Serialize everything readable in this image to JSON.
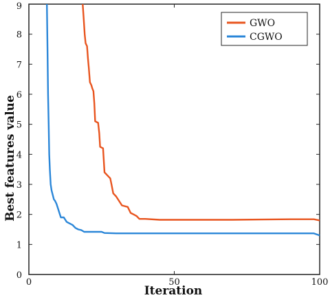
{
  "chart_data": {
    "type": "line",
    "xlabel": "Iteration",
    "ylabel": "Best features value",
    "xlim": [
      0,
      100
    ],
    "ylim": [
      0,
      9
    ],
    "xticks": [
      "0",
      "50",
      "100"
    ],
    "yticks": [
      "0",
      "1",
      "2",
      "3",
      "4",
      "5",
      "6",
      "7",
      "8",
      "9"
    ],
    "grid": false,
    "legend_position": "top-right",
    "series": [
      {
        "name": "GWO",
        "color": "#e8541e",
        "points": [
          [
            18.5,
            9.0
          ],
          [
            18.8,
            8.6
          ],
          [
            19.2,
            8.0
          ],
          [
            19.5,
            7.7
          ],
          [
            20.0,
            7.6
          ],
          [
            20.3,
            7.2
          ],
          [
            20.6,
            6.9
          ],
          [
            21.0,
            6.4
          ],
          [
            21.5,
            6.3
          ],
          [
            21.8,
            6.2
          ],
          [
            22.2,
            6.1
          ],
          [
            22.5,
            5.7
          ],
          [
            22.8,
            5.1
          ],
          [
            23.8,
            5.05
          ],
          [
            24.2,
            4.7
          ],
          [
            24.5,
            4.25
          ],
          [
            25.5,
            4.2
          ],
          [
            26.0,
            3.4
          ],
          [
            27.0,
            3.3
          ],
          [
            28.0,
            3.2
          ],
          [
            28.5,
            2.95
          ],
          [
            29.0,
            2.7
          ],
          [
            30.0,
            2.6
          ],
          [
            31.0,
            2.45
          ],
          [
            32.0,
            2.3
          ],
          [
            34.0,
            2.25
          ],
          [
            35.0,
            2.05
          ],
          [
            36.0,
            2.0
          ],
          [
            37.0,
            1.95
          ],
          [
            38.0,
            1.85
          ],
          [
            40.0,
            1.85
          ],
          [
            45.0,
            1.82
          ],
          [
            50.0,
            1.82
          ],
          [
            60.0,
            1.82
          ],
          [
            70.0,
            1.82
          ],
          [
            80.0,
            1.83
          ],
          [
            90.0,
            1.84
          ],
          [
            98.0,
            1.84
          ],
          [
            100.0,
            1.8
          ]
        ]
      },
      {
        "name": "CGWO",
        "color": "#2a86d8",
        "points": [
          [
            6.2,
            9.0
          ],
          [
            6.4,
            7.5
          ],
          [
            6.6,
            6.0
          ],
          [
            6.8,
            5.0
          ],
          [
            7.0,
            4.0
          ],
          [
            7.2,
            3.5
          ],
          [
            7.5,
            3.0
          ],
          [
            7.8,
            2.8
          ],
          [
            8.2,
            2.65
          ],
          [
            8.6,
            2.5
          ],
          [
            9.0,
            2.45
          ],
          [
            9.5,
            2.35
          ],
          [
            10.0,
            2.2
          ],
          [
            10.5,
            2.05
          ],
          [
            11.0,
            1.9
          ],
          [
            12.0,
            1.9
          ],
          [
            13.0,
            1.75
          ],
          [
            14.0,
            1.7
          ],
          [
            15.0,
            1.65
          ],
          [
            16.0,
            1.55
          ],
          [
            17.0,
            1.5
          ],
          [
            18.0,
            1.48
          ],
          [
            19.0,
            1.42
          ],
          [
            20.0,
            1.42
          ],
          [
            25.0,
            1.42
          ],
          [
            26.0,
            1.38
          ],
          [
            30.0,
            1.37
          ],
          [
            40.0,
            1.37
          ],
          [
            50.0,
            1.37
          ],
          [
            60.0,
            1.37
          ],
          [
            70.0,
            1.37
          ],
          [
            80.0,
            1.37
          ],
          [
            90.0,
            1.37
          ],
          [
            98.0,
            1.37
          ],
          [
            100.0,
            1.3
          ]
        ]
      }
    ]
  }
}
